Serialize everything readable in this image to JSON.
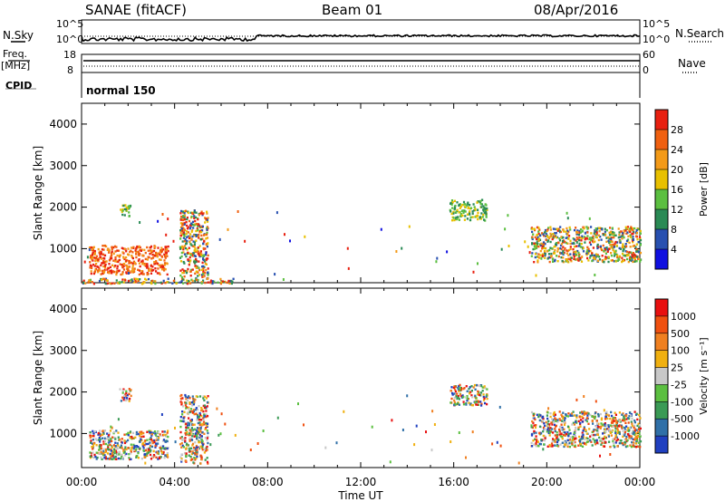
{
  "header": {
    "station": "SANAE (fitACF)",
    "beam": "Beam 01",
    "date": "08/Apr/2016"
  },
  "left_labels": {
    "nsky": "N.Sky",
    "freq": "Freq.",
    "freq_unit": "[MHz]",
    "cpid": "CPID"
  },
  "right_labels": {
    "nsearch": "N.Search",
    "nave": "Nave"
  },
  "cpid_text": "normal 150",
  "chart_data": [
    {
      "type": "line",
      "panel": "noise",
      "y_ticks_left": [
        "10^5",
        "10^0"
      ],
      "y_ticks_right": [
        "10^5",
        "10^0"
      ],
      "series": [
        {
          "name": "N.Sky",
          "style": "solid"
        },
        {
          "name": "N.Search",
          "style": "dotted"
        }
      ]
    },
    {
      "type": "line",
      "panel": "frequency",
      "y_ticks_left": [
        "18",
        "8"
      ],
      "y_ticks_right": [
        "60",
        "0"
      ],
      "series": [
        {
          "name": "Freq.",
          "style": "solid"
        },
        {
          "name": "Nave",
          "style": "dotted"
        }
      ]
    },
    {
      "type": "heatmap",
      "panel": "power",
      "ylabel": "Slant Range [km]",
      "xlabel": "",
      "yticks": [
        "1000",
        "2000",
        "3000",
        "4000"
      ],
      "ylim": [
        180,
        4500
      ],
      "colorbar": {
        "label": "Power [dB]",
        "ticks": [
          "4",
          "8",
          "12",
          "16",
          "20",
          "24",
          "28"
        ],
        "colors": [
          "#1010e0",
          "#2850b0",
          "#2a8a55",
          "#5bbf40",
          "#e8c000",
          "#f39a18",
          "#f06010",
          "#e82010"
        ]
      },
      "echo_regions": [
        {
          "t_start": 0.3,
          "t_end": 3.7,
          "range_min": 400,
          "range_max": 1100,
          "level": "high"
        },
        {
          "t_start": 1.6,
          "t_end": 2.1,
          "range_min": 1800,
          "range_max": 2100,
          "level": "mid"
        },
        {
          "t_start": 4.2,
          "t_end": 5.4,
          "range_min": 300,
          "range_max": 1950,
          "level": "mixed"
        },
        {
          "t_start": 15.8,
          "t_end": 17.4,
          "range_min": 1700,
          "range_max": 2200,
          "level": "mid"
        },
        {
          "t_start": 19.3,
          "t_end": 24.0,
          "range_min": 700,
          "range_max": 1550,
          "level": "mixed"
        },
        {
          "t_start": 0.0,
          "t_end": 6.5,
          "range_min": 180,
          "range_max": 300,
          "level": "mixed"
        }
      ]
    },
    {
      "type": "heatmap",
      "panel": "velocity",
      "ylabel": "Slant Range [km]",
      "xlabel": "Time UT",
      "yticks": [
        "1000",
        "2000",
        "3000",
        "4000"
      ],
      "ylim": [
        180,
        4500
      ],
      "colorbar": {
        "label": "Velocity [m s⁻¹]",
        "ticks": [
          "1000",
          "500",
          "100",
          "25",
          "-25",
          "-100",
          "-500",
          "-1000"
        ],
        "colors": [
          "#2040c0",
          "#3070a8",
          "#3a9a55",
          "#5bbf40",
          "#c8c8c8",
          "#f0b010",
          "#f08020",
          "#f05010",
          "#e81010"
        ]
      },
      "echo_regions": [
        {
          "t_start": 0.3,
          "t_end": 3.7,
          "range_min": 400,
          "range_max": 1100,
          "level": "mixed"
        },
        {
          "t_start": 1.6,
          "t_end": 2.1,
          "range_min": 1800,
          "range_max": 2100,
          "level": "mid"
        },
        {
          "t_start": 4.2,
          "t_end": 5.4,
          "range_min": 300,
          "range_max": 1950,
          "level": "mixed"
        },
        {
          "t_start": 15.8,
          "t_end": 17.4,
          "range_min": 1700,
          "range_max": 2200,
          "level": "mixed"
        },
        {
          "t_start": 19.3,
          "t_end": 24.0,
          "range_min": 700,
          "range_max": 1550,
          "level": "mixed"
        }
      ]
    }
  ],
  "x_axis": {
    "ticks": [
      "00:00",
      "04:00",
      "08:00",
      "12:00",
      "16:00",
      "20:00",
      "00:00"
    ],
    "label": "Time UT"
  }
}
